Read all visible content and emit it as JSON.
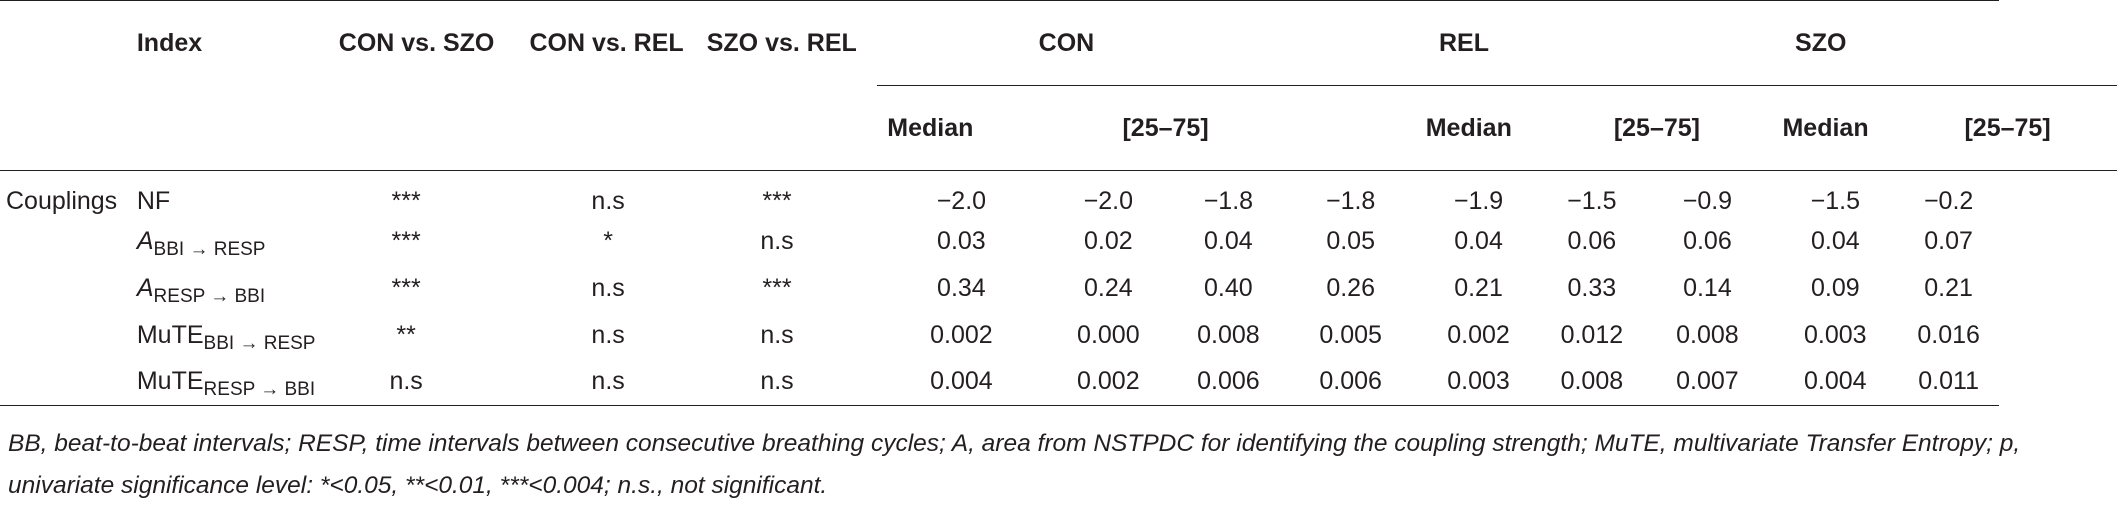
{
  "header": {
    "index": "Index",
    "con_vs_szo": "CON vs. SZO",
    "con_vs_rel": "CON vs. REL",
    "szo_vs_rel": "SZO vs. REL",
    "groups": [
      "CON",
      "REL",
      "SZO"
    ],
    "median": "Median",
    "iqr": "[25–75]"
  },
  "category": "Couplings",
  "rows": [
    {
      "index_main": "NF",
      "index_sub": "",
      "index_italic": false,
      "sig": [
        "***",
        "n.s",
        "***"
      ],
      "vals": [
        "−2.0",
        "−2.0",
        "−1.8",
        "−1.8",
        "−1.9",
        "−1.5",
        "−0.9",
        "−1.5",
        "−0.2"
      ]
    },
    {
      "index_main": "A",
      "index_sub": "BBI → RESP",
      "index_italic": true,
      "sig": [
        "***",
        "*",
        "n.s"
      ],
      "vals": [
        "0.03",
        "0.02",
        "0.04",
        "0.05",
        "0.04",
        "0.06",
        "0.06",
        "0.04",
        "0.07"
      ]
    },
    {
      "index_main": "A",
      "index_sub": "RESP → BBI",
      "index_italic": true,
      "sig": [
        "***",
        "n.s",
        "***"
      ],
      "vals": [
        "0.34",
        "0.24",
        "0.40",
        "0.26",
        "0.21",
        "0.33",
        "0.14",
        "0.09",
        "0.21"
      ]
    },
    {
      "index_main": "MuTE",
      "index_sub": "BBI → RESP",
      "index_italic": false,
      "sig": [
        "**",
        "n.s",
        "n.s"
      ],
      "vals": [
        "0.002",
        "0.000",
        "0.008",
        "0.005",
        "0.002",
        "0.012",
        "0.008",
        "0.003",
        "0.016"
      ]
    },
    {
      "index_main": "MuTE",
      "index_sub": "RESP → BBI",
      "index_italic": false,
      "sig": [
        "n.s",
        "n.s",
        "n.s"
      ],
      "vals": [
        "0.004",
        "0.002",
        "0.006",
        "0.006",
        "0.003",
        "0.008",
        "0.007",
        "0.004",
        "0.011"
      ]
    }
  ],
  "footnote": "BB, beat-to-beat intervals; RESP, time intervals between consecutive breathing cycles; A, area from NSTPDC for identifying the coupling strength; MuTE, multivariate Transfer Entropy; p, univariate significance level: *<0.05, **<0.01, ***<0.004; n.s., not significant."
}
